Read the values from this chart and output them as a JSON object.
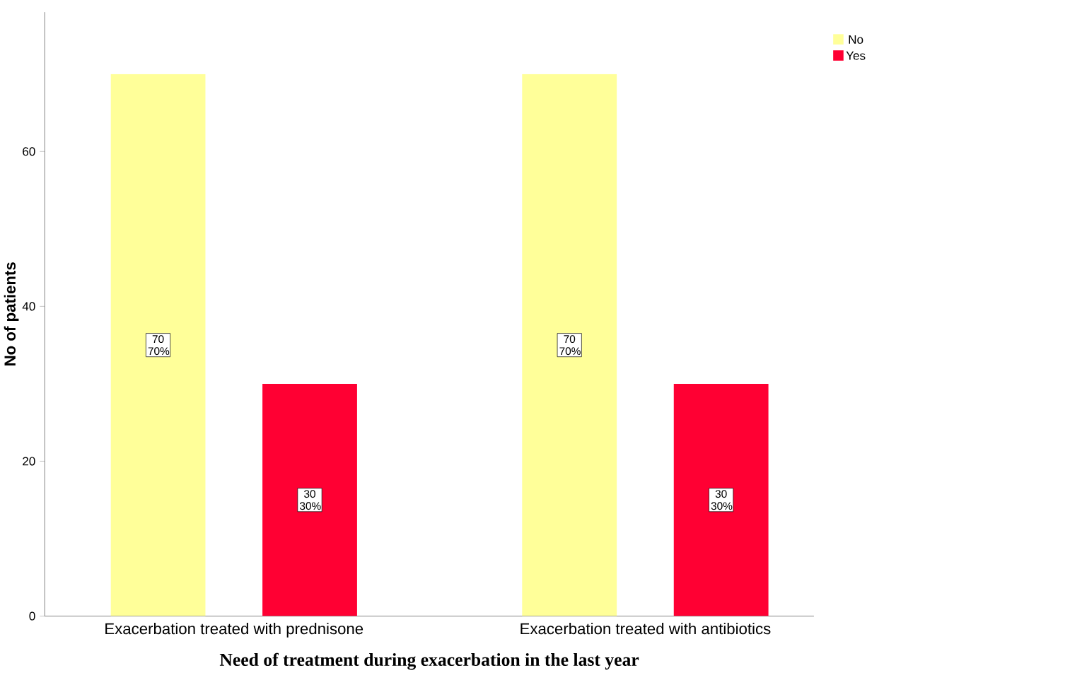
{
  "chart_data": {
    "type": "bar",
    "categories": [
      "Exacerbation treated with prednisone",
      "Exacerbation treated with antibiotics"
    ],
    "series": [
      {
        "name": "No",
        "color": "#ffff99",
        "values": [
          70,
          70
        ],
        "value_labels": [
          "70 70%",
          "70 70%"
        ]
      },
      {
        "name": "Yes",
        "color": "#ff0033",
        "values": [
          30,
          30
        ],
        "value_labels": [
          "30 30%",
          "30 30%"
        ]
      }
    ],
    "xlabel": "Need of treatment during exacerbation in the last year",
    "ylabel": "No of patients",
    "ylim": [
      0,
      78
    ],
    "yticks": [
      0,
      20,
      40,
      60
    ],
    "grid": false,
    "legend": "top right"
  }
}
